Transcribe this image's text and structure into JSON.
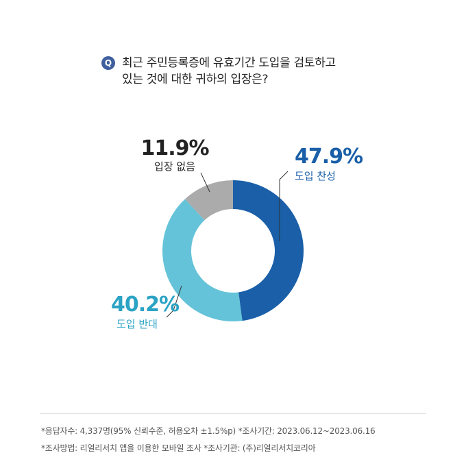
{
  "question": {
    "badge": "Q",
    "line1": "최근 주민등록증에 유효기간 도입을 검토하고",
    "line2": "있는 것에 대한 귀하의 입장은?"
  },
  "colors": {
    "badge": "#3f5f9e",
    "support": "#1a5fa8",
    "oppose": "#64c3d8",
    "none": "#ababab",
    "support_text": "#1a5fa8",
    "oppose_text": "#2ba3c4",
    "none_text": "#222222"
  },
  "chart_data": {
    "type": "pie",
    "style": "donut",
    "slices": [
      {
        "label": "도입 찬성",
        "value": 47.9,
        "display": "47.9%"
      },
      {
        "label": "도입 반대",
        "value": 40.2,
        "display": "40.2%"
      },
      {
        "label": "입장 없음",
        "value": 11.9,
        "display": "11.9%"
      }
    ]
  },
  "footnotes": {
    "line1": "*응답자수: 4,337명(95% 신뢰수준, 허용오차  ±1.5%p)  *조사기간: 2023.06.12~2023.06.16",
    "line2": "*조사방법: 리얼리서치 앱을 이용한 모바일 조사  *조사기관: (주)리얼리서치코리아"
  }
}
